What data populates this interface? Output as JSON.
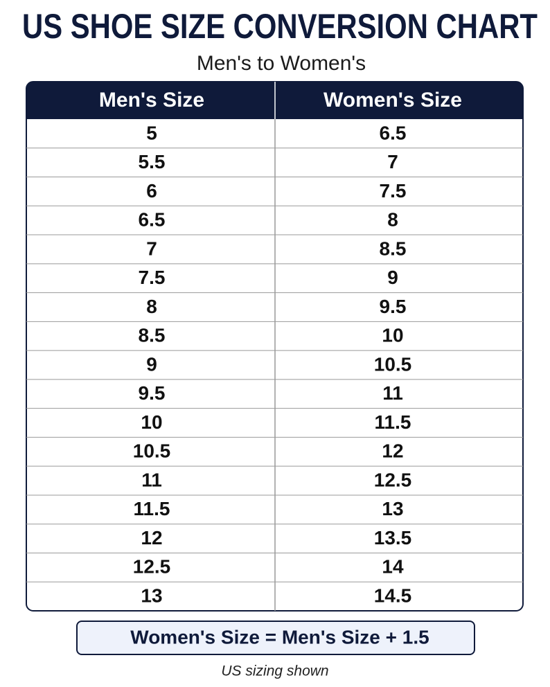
{
  "header": {
    "title": "US SHOE SIZE CONVERSION CHART",
    "subtitle": "Men's to Women's"
  },
  "table": {
    "columns": [
      "Men's Size",
      "Women's Size"
    ],
    "rows": [
      [
        "5",
        "6.5"
      ],
      [
        "5.5",
        "7"
      ],
      [
        "6",
        "7.5"
      ],
      [
        "6.5",
        "8"
      ],
      [
        "7",
        "8.5"
      ],
      [
        "7.5",
        "9"
      ],
      [
        "8",
        "9.5"
      ],
      [
        "8.5",
        "10"
      ],
      [
        "9",
        "10.5"
      ],
      [
        "9.5",
        "11"
      ],
      [
        "10",
        "11.5"
      ],
      [
        "10.5",
        "12"
      ],
      [
        "11",
        "12.5"
      ],
      [
        "11.5",
        "13"
      ],
      [
        "12",
        "13.5"
      ],
      [
        "12.5",
        "14"
      ],
      [
        "13",
        "14.5"
      ]
    ]
  },
  "formula": "Women's Size = Men's Size + 1.5",
  "footnote": "US sizing shown"
}
